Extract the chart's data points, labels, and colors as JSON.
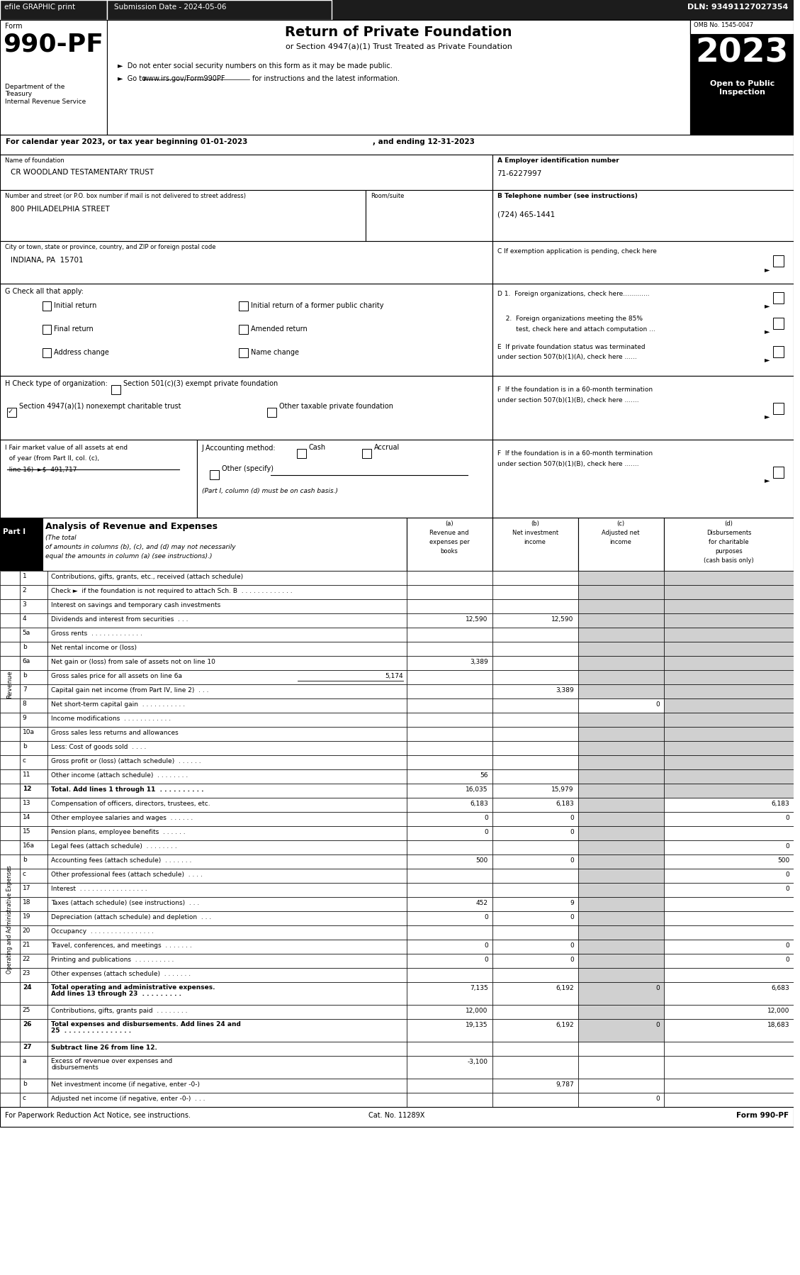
{
  "header_bar": {
    "efile_text": "efile GRAPHIC print",
    "submission_text": "Submission Date - 2024-05-06",
    "dln_text": "DLN: 93491127027354"
  },
  "form_number": "990-PF",
  "form_label": "Form",
  "form_title": "Return of Private Foundation",
  "form_subtitle": "or Section 4947(a)(1) Trust Treated as Private Foundation",
  "bullet1": "►  Do not enter social security numbers on this form as it may be made public.",
  "bullet2_a": "►  Go to ",
  "bullet2_url": "www.irs.gov/Form990PF",
  "bullet2_b": " for instructions and the latest information.",
  "dept_text": "Department of the\nTreasury\nInternal Revenue Service",
  "omb": "OMB No. 1545-0047",
  "year": "2023",
  "open_text": "Open to Public\nInspection",
  "cal_year_line1": "For calendar year 2023, or tax year beginning 01-01-2023",
  "cal_year_line2": ", and ending 12-31-2023",
  "name_label": "Name of foundation",
  "name_value": "CR WOODLAND TESTAMENTARY TRUST",
  "ein_label": "A Employer identification number",
  "ein_value": "71-6227997",
  "address_label": "Number and street (or P.O. box number if mail is not delivered to street address)",
  "address_value": "800 PHILADELPHIA STREET",
  "room_label": "Room/suite",
  "phone_label": "B Telephone number (see instructions)",
  "phone_value": "(724) 465-1441",
  "city_label": "City or town, state or province, country, and ZIP or foreign postal code",
  "city_value": "INDIANA, PA  15701",
  "exempt_label": "C If exemption application is pending, check here",
  "g_label": "G Check all that apply:",
  "g_checks": [
    [
      "Initial return",
      "Initial return of a former public charity"
    ],
    [
      "Final return",
      "Amended return"
    ],
    [
      "Address change",
      "Name change"
    ]
  ],
  "d1_label": "D 1.  Foreign organizations, check here.............",
  "d2_line1": "  2.  Foreign organizations meeting the 85%",
  "d2_line2": "       test, check here and attach computation ...",
  "e_line1": "E  If private foundation status was terminated",
  "e_line2": "under section 507(b)(1)(A), check here ......",
  "h_label": "H Check type of organization:",
  "h_check1": "Section 501(c)(3) exempt private foundation",
  "h_check2_checked": true,
  "h_check2": "Section 4947(a)(1) nonexempt charitable trust",
  "h_check3": "Other taxable private foundation",
  "f_line1": "F  If the foundation is in a 60-month termination",
  "f_line2": "under section 507(b)(1)(B), check here .......",
  "i_line1": "I Fair market value of all assets at end",
  "i_line2": "  of year (from Part II, col. (c),",
  "i_line3": "  line 16)  ►$  491,717",
  "j_label": "J Accounting method:",
  "j_cash": "Cash",
  "j_accrual": "Accrual",
  "j_other": "Other (specify)",
  "j_note": "(Part I, column (d) must be on cash basis.)",
  "part1_title": "Part I",
  "part1_heading": "Analysis of Revenue and Expenses",
  "part1_italic": "(The total of amounts in columns (b), (c), and (d) may not necessarily\nequal the amounts in column (a) (see instructions).)",
  "col_a_hdr": "(a)\nRevenue and\nexpenses per\nbooks",
  "col_b_hdr": "(b)\nNet investment\nincome",
  "col_c_hdr": "(c)\nAdjusted net\nincome",
  "col_d_hdr": "(d)\nDisbursements\nfor charitable\npurposes\n(cash basis only)",
  "revenue_rows": [
    {
      "num": "1",
      "label": "Contributions, gifts, grants, etc., received (attach schedule)",
      "a": "",
      "b": "",
      "c_gray": true,
      "d_gray": true
    },
    {
      "num": "2",
      "label": "Check ►  if the foundation is not required to attach Sch. B  . . . . . . . . . . . . .",
      "a": "",
      "b": "",
      "c_gray": true,
      "d_gray": true
    },
    {
      "num": "3",
      "label": "Interest on savings and temporary cash investments",
      "a": "",
      "b": "",
      "c_gray": true,
      "d_gray": true
    },
    {
      "num": "4",
      "label": "Dividends and interest from securities  . . .",
      "a": "12,590",
      "b": "12,590",
      "c_gray": true,
      "d_gray": true
    },
    {
      "num": "5a",
      "label": "Gross rents  . . . . . . . . . . . . .",
      "a": "",
      "b": "",
      "c_gray": true,
      "d_gray": true
    },
    {
      "num": "b",
      "label": "Net rental income or (loss)",
      "a": "",
      "b": "",
      "c_gray": true,
      "d_gray": true
    },
    {
      "num": "6a",
      "label": "Net gain or (loss) from sale of assets not on line 10",
      "a": "3,389",
      "b": "",
      "c_gray": true,
      "d_gray": true
    },
    {
      "num": "b",
      "label": "Gross sales price for all assets on line 6a",
      "a": "",
      "b": "",
      "c_gray": true,
      "d_gray": true,
      "inline": "5,174"
    },
    {
      "num": "7",
      "label": "Capital gain net income (from Part IV, line 2)  . . .",
      "a": "",
      "b": "3,389",
      "c_gray": true,
      "d_gray": true
    },
    {
      "num": "8",
      "label": "Net short-term capital gain  . . . . . . . . . . .",
      "a": "",
      "b": "",
      "c": "0",
      "c_gray": false,
      "d_gray": true
    },
    {
      "num": "9",
      "label": "Income modifications  . . . . . . . . . . . .",
      "a": "",
      "b": "",
      "c_gray": true,
      "d_gray": true
    },
    {
      "num": "10a",
      "label": "Gross sales less returns and allowances",
      "a": "",
      "b": "",
      "c_gray": true,
      "d_gray": true
    },
    {
      "num": "b",
      "label": "Less: Cost of goods sold  . . . .",
      "a": "",
      "b": "",
      "c_gray": true,
      "d_gray": true
    },
    {
      "num": "c",
      "label": "Gross profit or (loss) (attach schedule)  . . . . . .",
      "a": "",
      "b": "",
      "c_gray": true,
      "d_gray": true
    },
    {
      "num": "11",
      "label": "Other income (attach schedule)  . . . . . . . .",
      "a": "56",
      "b": "",
      "c_gray": true,
      "d_gray": true
    },
    {
      "num": "12",
      "label": "Total. Add lines 1 through 11  . . . . . . . . . .",
      "a": "16,035",
      "b": "15,979",
      "c_gray": true,
      "d_gray": true,
      "bold": true
    }
  ],
  "expense_rows": [
    {
      "num": "13",
      "label": "Compensation of officers, directors, trustees, etc.",
      "a": "6,183",
      "b": "6,183",
      "c": "",
      "d": "6,183"
    },
    {
      "num": "14",
      "label": "Other employee salaries and wages  . . . . . .",
      "a": "0",
      "b": "0",
      "c": "",
      "d": "0"
    },
    {
      "num": "15",
      "label": "Pension plans, employee benefits  . . . . . .",
      "a": "0",
      "b": "0",
      "c": "",
      "d": ""
    },
    {
      "num": "16a",
      "label": "Legal fees (attach schedule)  . . . . . . . .",
      "a": "",
      "b": "",
      "c": "",
      "d": "0"
    },
    {
      "num": "b",
      "label": "Accounting fees (attach schedule)  . . . . . . .",
      "a": "500",
      "b": "0",
      "c": "",
      "d": "500"
    },
    {
      "num": "c",
      "label": "Other professional fees (attach schedule)  . . . .",
      "a": "",
      "b": "",
      "c": "",
      "d": "0"
    },
    {
      "num": "17",
      "label": "Interest  . . . . . . . . . . . . . . . . .",
      "a": "",
      "b": "",
      "c": "",
      "d": "0"
    },
    {
      "num": "18",
      "label": "Taxes (attach schedule) (see instructions)  . . .",
      "a": "452",
      "b": "9",
      "c": "",
      "d": ""
    },
    {
      "num": "19",
      "label": "Depreciation (attach schedule) and depletion  . . .",
      "a": "0",
      "b": "0",
      "c": "",
      "d": ""
    },
    {
      "num": "20",
      "label": "Occupancy  . . . . . . . . . . . . . . . .",
      "a": "",
      "b": "",
      "c": "",
      "d": ""
    },
    {
      "num": "21",
      "label": "Travel, conferences, and meetings  . . . . . . .",
      "a": "0",
      "b": "0",
      "c": "",
      "d": "0"
    },
    {
      "num": "22",
      "label": "Printing and publications  . . . . . . . . . .",
      "a": "0",
      "b": "0",
      "c": "",
      "d": "0"
    },
    {
      "num": "23",
      "label": "Other expenses (attach schedule)  . . . . . . .",
      "a": "",
      "b": "",
      "c": "",
      "d": ""
    },
    {
      "num": "24",
      "label": "Total operating and administrative expenses.\nAdd lines 13 through 23  . . . . . . . . .",
      "a": "7,135",
      "b": "6,192",
      "c": "0",
      "d": "6,683",
      "bold": true,
      "two_line": true
    },
    {
      "num": "25",
      "label": "Contributions, gifts, grants paid  . . . . . . . .",
      "a": "12,000",
      "b": "",
      "c": "",
      "d": "12,000"
    },
    {
      "num": "26",
      "label": "Total expenses and disbursements. Add lines 24 and\n25  . . . . . . . . . . . . . . .",
      "a": "19,135",
      "b": "6,192",
      "c": "0",
      "d": "18,683",
      "bold": true,
      "two_line": true
    }
  ],
  "bottom_rows": [
    {
      "num": "27",
      "label": "Subtract line 26 from line 12.",
      "sub_header": true
    },
    {
      "num": "a",
      "label": "Excess of revenue over expenses and\ndisbursements",
      "a": "-3,100",
      "b": "",
      "c": "",
      "d": "",
      "two_line": true
    },
    {
      "num": "b",
      "label": "Net investment income (if negative, enter -0-)",
      "a": "",
      "b": "9,787",
      "c": "",
      "d": ""
    },
    {
      "num": "c",
      "label": "Adjusted net income (if negative, enter -0-)  . . .",
      "a": "",
      "b": "",
      "c": "0",
      "d": ""
    }
  ],
  "footer_left": "For Paperwork Reduction Act Notice, see instructions.",
  "footer_cat": "Cat. No. 11289X",
  "footer_right": "Form 990-PF",
  "side_revenue": "Revenue",
  "side_expenses": "Operating and Administrative Expenses",
  "gray": "#d0d0d0"
}
